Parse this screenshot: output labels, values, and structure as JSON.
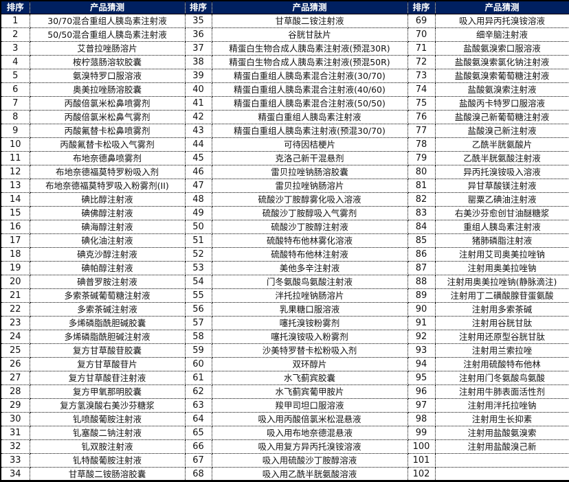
{
  "headers": {
    "rank": "排序",
    "product": "产品猜测"
  },
  "colors": {
    "header_bg": "#002060",
    "header_text": "#ffffff"
  },
  "groups": [
    [
      [
        "1",
        "30/70混合重组人胰岛素注射液"
      ],
      [
        "2",
        "50/50混合重组人胰岛素注射液"
      ],
      [
        "3",
        "艾普拉唑肠溶片"
      ],
      [
        "4",
        "桉柠蒎肠溶软胶囊"
      ],
      [
        "5",
        "氨溴特罗口服溶液"
      ],
      [
        "6",
        "奥美拉唑肠溶胶囊"
      ],
      [
        "7",
        "丙酸倍氯米松鼻喷雾剂"
      ],
      [
        "8",
        "丙酸倍氯米松鼻气雾剂"
      ],
      [
        "9",
        "丙酸氟替卡松鼻喷雾剂"
      ],
      [
        "10",
        "丙酸氟替卡松吸入气雾剂"
      ],
      [
        "11",
        "布地奈德鼻喷雾剂"
      ],
      [
        "12",
        "布地奈德福莫特罗粉吸入剂"
      ],
      [
        "13",
        "布地奈德福莫特罗吸入粉雾剂(II)"
      ],
      [
        "14",
        "碘比醇注射液"
      ],
      [
        "15",
        "碘佛醇注射液"
      ],
      [
        "16",
        "碘海醇注射液"
      ],
      [
        "17",
        "碘化油注射液"
      ],
      [
        "18",
        "碘克沙醇注射液"
      ],
      [
        "19",
        "碘帕醇注射液"
      ],
      [
        "20",
        "碘普罗胺注射液"
      ],
      [
        "21",
        "多索茶碱葡萄糖注射液"
      ],
      [
        "22",
        "多索茶碱注射液"
      ],
      [
        "23",
        "多烯磷脂酰胆碱胶囊"
      ],
      [
        "24",
        "多烯磷脂酰胆碱注射液"
      ],
      [
        "25",
        "复方甘草酸苷胶囊"
      ],
      [
        "26",
        "复方甘草酸苷片"
      ],
      [
        "27",
        "复方甘草酸苷注射液"
      ],
      [
        "28",
        "复方甲氧那明胶囊"
      ],
      [
        "29",
        "复方氢溴酸右美沙芬糖浆"
      ],
      [
        "30",
        "钆喷酸葡胺注射液"
      ],
      [
        "31",
        "钆塞酸二钠注射液"
      ],
      [
        "32",
        "钆双胺注射液"
      ],
      [
        "33",
        "钆特酸葡胺注射液"
      ],
      [
        "34",
        "甘草酸二铵肠溶胶囊"
      ]
    ],
    [
      [
        "35",
        "甘草酸二铵注射液"
      ],
      [
        "36",
        "谷胱甘肽片"
      ],
      [
        "37",
        "精蛋白生物合成人胰岛素注射液(预混30R)"
      ],
      [
        "38",
        "精蛋白生物合成人胰岛素注射液(预混50R)"
      ],
      [
        "39",
        "精蛋白重组人胰岛素混合注射液(30/70)"
      ],
      [
        "40",
        "精蛋白重组人胰岛素混合注射液(40/60)"
      ],
      [
        "41",
        "精蛋白重组人胰岛素混合注射液(50/50)"
      ],
      [
        "42",
        "精蛋白重组人胰岛素注射液"
      ],
      [
        "43",
        "精蛋白重组人胰岛素注射液(预混30/70)"
      ],
      [
        "44",
        "可待因桔梗片"
      ],
      [
        "45",
        "克洛己新干混悬剂"
      ],
      [
        "46",
        "雷贝拉唑钠肠溶胶囊"
      ],
      [
        "47",
        "雷贝拉唑钠肠溶片"
      ],
      [
        "48",
        "硫酸沙丁胺醇雾化吸入溶液"
      ],
      [
        "49",
        "硫酸沙丁胺醇吸入气雾剂"
      ],
      [
        "50",
        "硫酸沙丁胺醇注射液"
      ],
      [
        "51",
        "硫酸特布他林雾化溶液"
      ],
      [
        "52",
        "硫酸特布他林注射液"
      ],
      [
        "53",
        "美他多辛注射液"
      ],
      [
        "54",
        "门冬氨酸鸟氨酸注射液"
      ],
      [
        "55",
        "泮托拉唑钠肠溶片"
      ],
      [
        "56",
        "乳果糖口服溶液"
      ],
      [
        "57",
        "噻托溴铵粉雾剂"
      ],
      [
        "58",
        "噻托溴铵吸入粉雾剂"
      ],
      [
        "59",
        "沙美特罗替卡松粉吸入剂"
      ],
      [
        "60",
        "双环醇片"
      ],
      [
        "61",
        "水飞蓟宾胶囊"
      ],
      [
        "62",
        "水飞蓟宾葡甲胺片"
      ],
      [
        "63",
        "羧甲司坦口服溶液"
      ],
      [
        "64",
        "吸入用丙酸倍氯米松混悬液"
      ],
      [
        "65",
        "吸入用布地奈德混悬液"
      ],
      [
        "66",
        "吸入用复方异丙托溴铵溶液"
      ],
      [
        "67",
        "吸入用硫酸沙丁胺醇溶液"
      ],
      [
        "68",
        "吸入用乙酰半胱氨酸溶液"
      ]
    ],
    [
      [
        "69",
        "吸入用异丙托溴铵溶液"
      ],
      [
        "70",
        "细辛脑注射液"
      ],
      [
        "71",
        "盐酸氨溴索口服溶液"
      ],
      [
        "72",
        "盐酸氨溴索氯化钠注射液"
      ],
      [
        "73",
        "盐酸氨溴索葡萄糖注射液"
      ],
      [
        "74",
        "盐酸氨溴索注射液"
      ],
      [
        "75",
        "盐酸丙卡特罗口服溶液"
      ],
      [
        "76",
        "盐酸溴己新葡萄糖注射液"
      ],
      [
        "77",
        "盐酸溴己新注射液"
      ],
      [
        "78",
        "乙酰半胱氨酸片"
      ],
      [
        "79",
        "乙酰半胱氨酸注射液"
      ],
      [
        "80",
        "异丙托溴铵吸入溶液"
      ],
      [
        "81",
        "异甘草酸镁注射液"
      ],
      [
        "82",
        "罂粟乙碘油注射液"
      ],
      [
        "83",
        "右美沙芬愈创甘油醚糖浆"
      ],
      [
        "84",
        "重组人胰岛素注射液"
      ],
      [
        "85",
        "猪肺磷脂注射液"
      ],
      [
        "86",
        "注射用艾司奥美拉唑钠"
      ],
      [
        "87",
        "注射用奥美拉唑钠"
      ],
      [
        "88",
        "注射用奥美拉唑钠(静脉滴注)"
      ],
      [
        "89",
        "注射用丁二磺酸腺苷蛋氨酸"
      ],
      [
        "90",
        "注射用多索茶碱"
      ],
      [
        "91",
        "注射用谷胱甘肽"
      ],
      [
        "92",
        "注射用还原型谷胱甘肽"
      ],
      [
        "93",
        "注射用兰索拉唑"
      ],
      [
        "94",
        "注射用硫酸特布他林"
      ],
      [
        "95",
        "注射用门冬氨酸鸟氨酸"
      ],
      [
        "96",
        "注射用牛肺表面活性剂"
      ],
      [
        "97",
        "注射用泮托拉唑钠"
      ],
      [
        "98",
        "注射用生长抑素"
      ],
      [
        "99",
        "注射用盐酸氨溴索"
      ],
      [
        "100",
        "注射用盐酸溴己新"
      ],
      [
        "101",
        ""
      ],
      [
        "102",
        ""
      ]
    ]
  ]
}
